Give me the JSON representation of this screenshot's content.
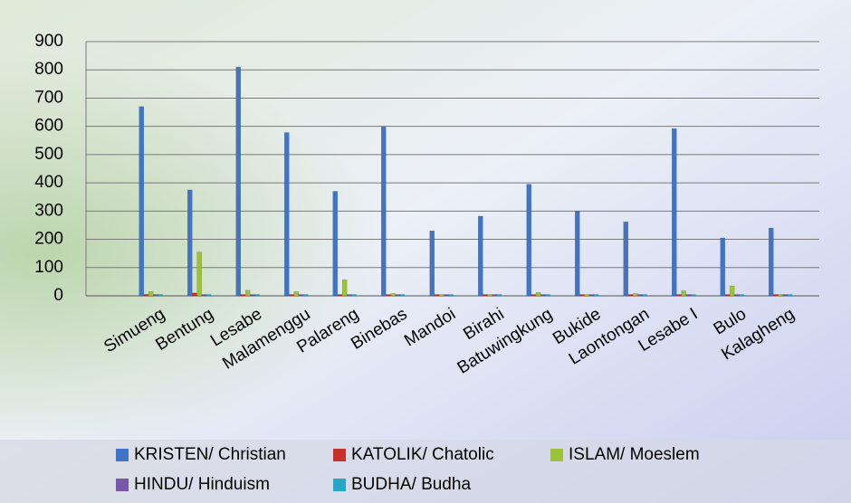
{
  "chart_data": {
    "type": "bar",
    "categories": [
      "Simueng",
      "Bentung",
      "Lesabe",
      "Malamenggu",
      "Palareng",
      "Binebas",
      "Mandoi",
      "Birahi",
      "Batuwingkung",
      "Bukide",
      "Laontongan",
      "Lesabe I",
      "Bulo",
      "Kalagheng"
    ],
    "series": [
      {
        "name": "KRISTEN/ Christian",
        "color": "#3f74c6",
        "values": [
          670,
          375,
          810,
          578,
          370,
          598,
          230,
          282,
          395,
          300,
          262,
          592,
          205,
          240
        ]
      },
      {
        "name": "KATOLIK/ Chatolic",
        "color": "#c9302c",
        "values": [
          5,
          10,
          3,
          4,
          3,
          3,
          2,
          2,
          2,
          2,
          2,
          3,
          2,
          2
        ]
      },
      {
        "name": "ISLAM/ Moeslem",
        "color": "#9cc23a",
        "values": [
          15,
          155,
          20,
          15,
          57,
          8,
          3,
          3,
          12,
          3,
          8,
          18,
          35,
          5
        ]
      },
      {
        "name": "HINDU/ Hinduism",
        "color": "#7a56a8",
        "values": [
          0,
          0,
          0,
          0,
          0,
          0,
          0,
          0,
          0,
          0,
          0,
          0,
          0,
          0
        ]
      },
      {
        "name": "BUDHA/ Budha",
        "color": "#27a6c6",
        "values": [
          0,
          0,
          0,
          0,
          0,
          0,
          0,
          0,
          0,
          0,
          0,
          0,
          0,
          0
        ]
      }
    ],
    "ylim": [
      0,
      900
    ],
    "yticks": [
      0,
      100,
      200,
      300,
      400,
      500,
      600,
      700,
      800,
      900
    ],
    "grid": true
  }
}
